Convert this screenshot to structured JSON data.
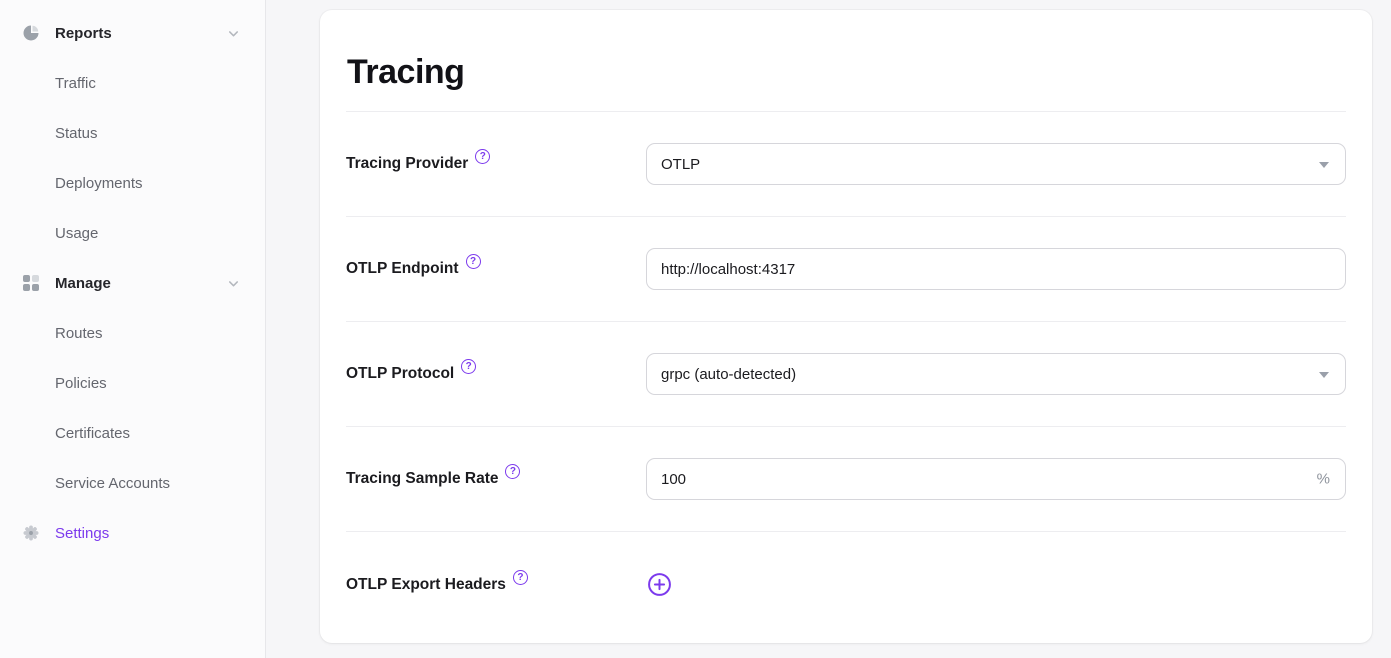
{
  "colors": {
    "accent": "#7c3aed"
  },
  "help_glyph": "?",
  "sidebar": {
    "sections": [
      {
        "label": "Reports",
        "icon": "pie-chart-icon",
        "chevron": "chevron-down-icon",
        "active": false,
        "children": [
          "Traffic",
          "Status",
          "Deployments",
          "Usage"
        ]
      },
      {
        "label": "Manage",
        "icon": "grid-icon",
        "chevron": "chevron-down-icon",
        "active": false,
        "children": [
          "Routes",
          "Policies",
          "Certificates",
          "Service Accounts"
        ]
      },
      {
        "label": "Settings",
        "icon": "gear-icon",
        "chevron": null,
        "active": true,
        "children": []
      }
    ]
  },
  "main": {
    "title": "Tracing",
    "fields": [
      {
        "label": "Tracing Provider",
        "type": "select",
        "value": "OTLP",
        "help_icon": true
      },
      {
        "label": "OTLP Endpoint",
        "type": "text",
        "value": "http://localhost:4317",
        "help_icon": true
      },
      {
        "label": "OTLP Protocol",
        "type": "select",
        "value": "grpc (auto-detected)",
        "help_icon": true
      },
      {
        "label": "Tracing Sample Rate",
        "type": "text",
        "value": "100",
        "suffix": "%",
        "help_icon": true
      },
      {
        "label": "OTLP Export Headers",
        "type": "add-button",
        "button_icon": "plus-icon",
        "help_icon": true
      }
    ]
  }
}
